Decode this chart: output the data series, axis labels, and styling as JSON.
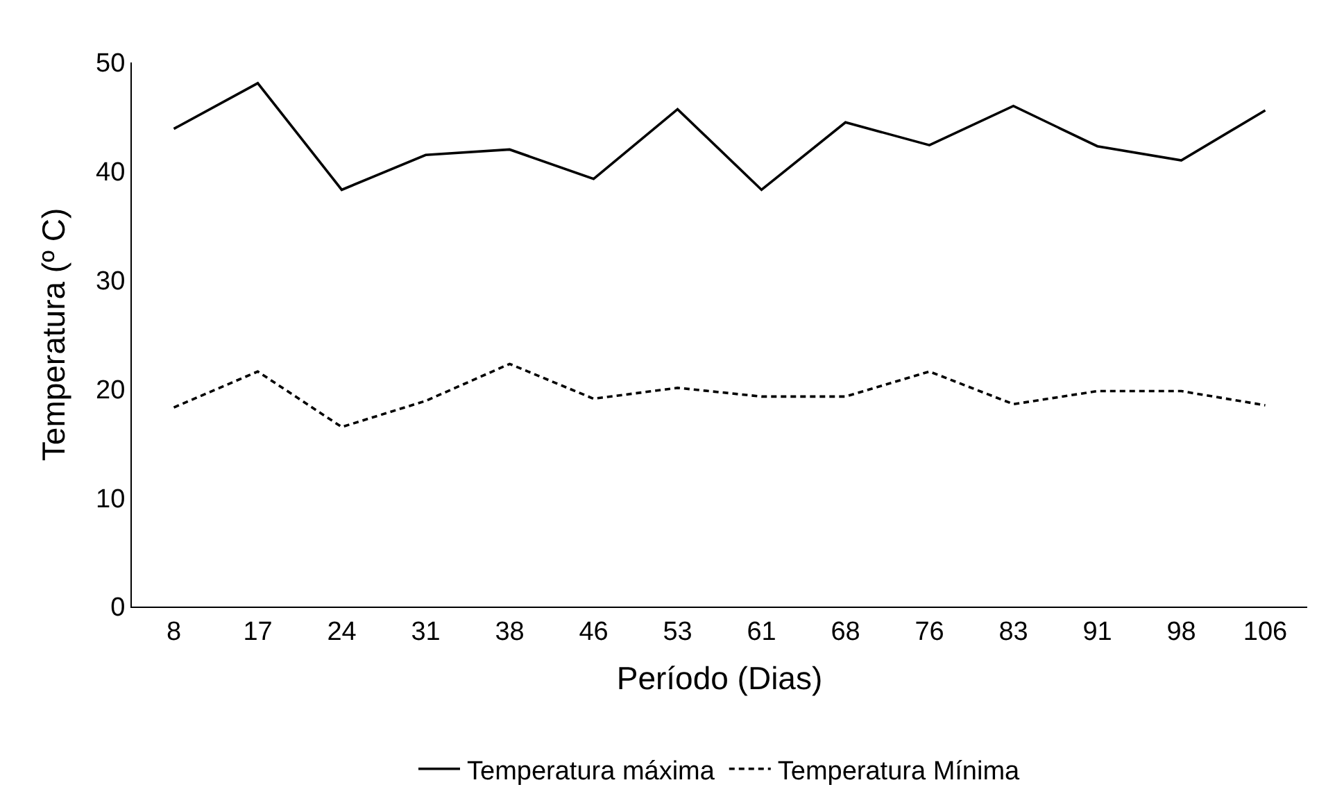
{
  "chart_data": {
    "type": "line",
    "xlabel": "Período (Dias)",
    "ylabel": "Temperatura (º C)",
    "categories": [
      "8",
      "17",
      "24",
      "31",
      "38",
      "46",
      "53",
      "61",
      "68",
      "76",
      "83",
      "91",
      "98",
      "106"
    ],
    "series": [
      {
        "name": "Temperatura máxima",
        "color": "#000000",
        "line_style": "solid",
        "values": [
          43.9,
          48.1,
          38.3,
          41.5,
          42.0,
          39.3,
          45.7,
          38.3,
          44.5,
          42.4,
          46.0,
          42.3,
          41.0,
          45.6
        ]
      },
      {
        "name": "Temperatura Mínima",
        "color": "#000000",
        "line_style": "dashed",
        "values": [
          18.3,
          21.6,
          16.5,
          18.9,
          22.3,
          19.1,
          20.1,
          19.3,
          19.3,
          21.6,
          18.6,
          19.8,
          19.8,
          18.5
        ]
      }
    ],
    "ylim": [
      0,
      50
    ],
    "yticks": [
      0,
      10,
      20,
      30,
      40,
      50
    ],
    "legend": "bottom",
    "marker": "none"
  }
}
